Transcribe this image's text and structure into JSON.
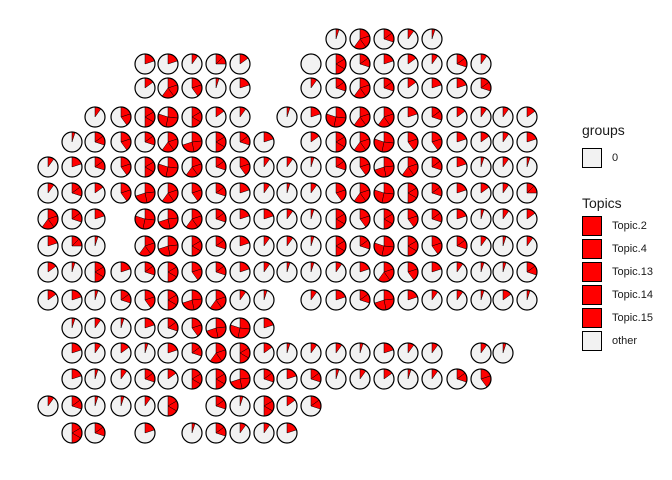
{
  "chart_data": {
    "type": "scatter-pie",
    "title": "",
    "xlabel": "",
    "ylabel": "",
    "grid": false,
    "colors": {
      "topic": "#ff0000",
      "other": "#f2f2f2",
      "outline": "#000000",
      "background": "#ffffff"
    },
    "legend": {
      "placement": "right",
      "groups": {
        "title": "groups",
        "items": [
          {
            "label": "0",
            "color": "#f2f2f2"
          }
        ]
      },
      "topics": {
        "title": "Topics",
        "items": [
          {
            "label": "Topic.2",
            "color": "#ff0000"
          },
          {
            "label": "Topic.4",
            "color": "#ff0000"
          },
          {
            "label": "Topic.13",
            "color": "#ff0000"
          },
          {
            "label": "Topic.14",
            "color": "#ff0000"
          },
          {
            "label": "Topic.15",
            "color": "#ff0000"
          },
          {
            "label": "other",
            "color": "#f2f2f2"
          }
        ]
      }
    },
    "grid_layout": {
      "row_y": [
        39,
        64,
        88,
        117,
        142,
        167,
        193,
        219,
        246,
        272,
        300,
        328,
        353,
        379,
        406,
        433
      ],
      "col_x": [
        48,
        72,
        95,
        121,
        145,
        168,
        192,
        216,
        240,
        264,
        287,
        311,
        336,
        360,
        384,
        408,
        432,
        457,
        481,
        503,
        527
      ]
    },
    "spots": [
      [
        0,
        12,
        0.05
      ],
      [
        0,
        13,
        0.6
      ],
      [
        0,
        14,
        0.3
      ],
      [
        0,
        15,
        0.1
      ],
      [
        0,
        16,
        0.05
      ],
      [
        1,
        4,
        0.2
      ],
      [
        1,
        5,
        0.2
      ],
      [
        1,
        6,
        0.1
      ],
      [
        1,
        7,
        0.25
      ],
      [
        1,
        8,
        0.15
      ],
      [
        1,
        11,
        0.0
      ],
      [
        1,
        12,
        0.5
      ],
      [
        1,
        13,
        0.3
      ],
      [
        1,
        14,
        0.2
      ],
      [
        1,
        15,
        0.15
      ],
      [
        1,
        16,
        0.1
      ],
      [
        1,
        17,
        0.3
      ],
      [
        1,
        18,
        0.1
      ],
      [
        2,
        4,
        0.15
      ],
      [
        2,
        5,
        0.6
      ],
      [
        2,
        6,
        0.4
      ],
      [
        2,
        7,
        0.05
      ],
      [
        2,
        8,
        0.2
      ],
      [
        2,
        11,
        0.1
      ],
      [
        2,
        12,
        0.3
      ],
      [
        2,
        13,
        0.6
      ],
      [
        2,
        14,
        0.3
      ],
      [
        2,
        15,
        0.15
      ],
      [
        2,
        16,
        0.2
      ],
      [
        2,
        17,
        0.2
      ],
      [
        2,
        18,
        0.3
      ],
      [
        3,
        2,
        0.1
      ],
      [
        3,
        3,
        0.4
      ],
      [
        3,
        4,
        0.5
      ],
      [
        3,
        5,
        0.8
      ],
      [
        3,
        6,
        0.5
      ],
      [
        3,
        7,
        0.15
      ],
      [
        3,
        8,
        0.1
      ],
      [
        3,
        10,
        0.05
      ],
      [
        3,
        11,
        0.2
      ],
      [
        3,
        12,
        0.8
      ],
      [
        3,
        13,
        0.6
      ],
      [
        3,
        14,
        0.6
      ],
      [
        3,
        15,
        0.2
      ],
      [
        3,
        16,
        0.3
      ],
      [
        3,
        17,
        0.15
      ],
      [
        3,
        18,
        0.1
      ],
      [
        3,
        19,
        0.1
      ],
      [
        3,
        20,
        0.15
      ],
      [
        4,
        1,
        0.05
      ],
      [
        4,
        2,
        0.3
      ],
      [
        4,
        3,
        0.4
      ],
      [
        4,
        4,
        0.3
      ],
      [
        4,
        5,
        0.6
      ],
      [
        4,
        6,
        0.7
      ],
      [
        4,
        7,
        0.5
      ],
      [
        4,
        8,
        0.3
      ],
      [
        4,
        9,
        0.2
      ],
      [
        4,
        11,
        0.15
      ],
      [
        4,
        12,
        0.5
      ],
      [
        4,
        13,
        0.6
      ],
      [
        4,
        14,
        0.8
      ],
      [
        4,
        15,
        0.4
      ],
      [
        4,
        16,
        0.4
      ],
      [
        4,
        17,
        0.2
      ],
      [
        4,
        18,
        0.15
      ],
      [
        4,
        19,
        0.1
      ],
      [
        4,
        20,
        0.2
      ],
      [
        5,
        0,
        0.1
      ],
      [
        5,
        1,
        0.2
      ],
      [
        5,
        2,
        0.3
      ],
      [
        5,
        3,
        0.4
      ],
      [
        5,
        4,
        0.5
      ],
      [
        5,
        5,
        0.8
      ],
      [
        5,
        6,
        0.6
      ],
      [
        5,
        7,
        0.3
      ],
      [
        5,
        8,
        0.4
      ],
      [
        5,
        9,
        0.1
      ],
      [
        5,
        10,
        0.1
      ],
      [
        5,
        11,
        0.05
      ],
      [
        5,
        12,
        0.3
      ],
      [
        5,
        13,
        0.4
      ],
      [
        5,
        14,
        0.7
      ],
      [
        5,
        15,
        0.6
      ],
      [
        5,
        16,
        0.3
      ],
      [
        5,
        17,
        0.2
      ],
      [
        5,
        18,
        0.05
      ],
      [
        5,
        19,
        0.1
      ],
      [
        5,
        20,
        0.05
      ],
      [
        6,
        0,
        0.1
      ],
      [
        6,
        1,
        0.3
      ],
      [
        6,
        2,
        0.15
      ],
      [
        6,
        3,
        0.4
      ],
      [
        6,
        4,
        0.7
      ],
      [
        6,
        5,
        0.6
      ],
      [
        6,
        6,
        0.4
      ],
      [
        6,
        7,
        0.3
      ],
      [
        6,
        8,
        0.2
      ],
      [
        6,
        9,
        0.1
      ],
      [
        6,
        10,
        0.05
      ],
      [
        6,
        11,
        0.1
      ],
      [
        6,
        12,
        0.4
      ],
      [
        6,
        13,
        0.6
      ],
      [
        6,
        14,
        0.8
      ],
      [
        6,
        15,
        0.5
      ],
      [
        6,
        16,
        0.3
      ],
      [
        6,
        17,
        0.2
      ],
      [
        6,
        18,
        0.15
      ],
      [
        6,
        19,
        0.1
      ],
      [
        6,
        20,
        0.25
      ],
      [
        7,
        0,
        0.6
      ],
      [
        7,
        1,
        0.3
      ],
      [
        7,
        2,
        0.2
      ],
      [
        7,
        4,
        0.8
      ],
      [
        7,
        5,
        0.7
      ],
      [
        7,
        6,
        0.6
      ],
      [
        7,
        7,
        0.3
      ],
      [
        7,
        8,
        0.2
      ],
      [
        7,
        9,
        0.2
      ],
      [
        7,
        10,
        0.1
      ],
      [
        7,
        11,
        0.05
      ],
      [
        7,
        12,
        0.5
      ],
      [
        7,
        13,
        0.4
      ],
      [
        7,
        14,
        0.5
      ],
      [
        7,
        15,
        0.4
      ],
      [
        7,
        16,
        0.3
      ],
      [
        7,
        17,
        0.2
      ],
      [
        7,
        18,
        0.05
      ],
      [
        7,
        19,
        0.1
      ],
      [
        7,
        20,
        0.15
      ],
      [
        8,
        0,
        0.2
      ],
      [
        8,
        1,
        0.25
      ],
      [
        8,
        2,
        0.05
      ],
      [
        8,
        4,
        0.6
      ],
      [
        8,
        5,
        0.7
      ],
      [
        8,
        6,
        0.5
      ],
      [
        8,
        7,
        0.3
      ],
      [
        8,
        8,
        0.2
      ],
      [
        8,
        9,
        0.1
      ],
      [
        8,
        10,
        0.1
      ],
      [
        8,
        11,
        0.05
      ],
      [
        8,
        12,
        0.5
      ],
      [
        8,
        13,
        0.3
      ],
      [
        8,
        14,
        0.8
      ],
      [
        8,
        15,
        0.5
      ],
      [
        8,
        16,
        0.4
      ],
      [
        8,
        17,
        0.3
      ],
      [
        8,
        18,
        0.1
      ],
      [
        8,
        19,
        0.05
      ],
      [
        8,
        20,
        0.1
      ],
      [
        9,
        0,
        0.15
      ],
      [
        9,
        1,
        0.05
      ],
      [
        9,
        2,
        0.5
      ],
      [
        9,
        3,
        0.2
      ],
      [
        9,
        4,
        0.3
      ],
      [
        9,
        5,
        0.5
      ],
      [
        9,
        6,
        0.4
      ],
      [
        9,
        7,
        0.3
      ],
      [
        9,
        8,
        0.2
      ],
      [
        9,
        9,
        0.1
      ],
      [
        9,
        10,
        0.05
      ],
      [
        9,
        11,
        0.05
      ],
      [
        9,
        12,
        0.1
      ],
      [
        9,
        13,
        0.2
      ],
      [
        9,
        14,
        0.6
      ],
      [
        9,
        15,
        0.4
      ],
      [
        9,
        16,
        0.2
      ],
      [
        9,
        17,
        0.1
      ],
      [
        9,
        18,
        0.05
      ],
      [
        9,
        19,
        0.05
      ],
      [
        9,
        20,
        0.3
      ],
      [
        10,
        0,
        0.15
      ],
      [
        10,
        1,
        0.2
      ],
      [
        10,
        2,
        0.05
      ],
      [
        10,
        3,
        0.3
      ],
      [
        10,
        4,
        0.4
      ],
      [
        10,
        5,
        0.5
      ],
      [
        10,
        6,
        0.7
      ],
      [
        10,
        7,
        0.6
      ],
      [
        10,
        8,
        0.1
      ],
      [
        10,
        9,
        0.05
      ],
      [
        10,
        11,
        0.1
      ],
      [
        10,
        12,
        0.2
      ],
      [
        10,
        13,
        0.3
      ],
      [
        10,
        14,
        0.7
      ],
      [
        10,
        15,
        0.2
      ],
      [
        10,
        16,
        0.1
      ],
      [
        10,
        17,
        0.1
      ],
      [
        10,
        18,
        0.05
      ],
      [
        10,
        19,
        0.15
      ],
      [
        10,
        20,
        0.05
      ],
      [
        11,
        1,
        0.05
      ],
      [
        11,
        2,
        0.1
      ],
      [
        11,
        3,
        0.05
      ],
      [
        11,
        4,
        0.2
      ],
      [
        11,
        5,
        0.3
      ],
      [
        11,
        6,
        0.4
      ],
      [
        11,
        7,
        0.7
      ],
      [
        11,
        8,
        0.8
      ],
      [
        11,
        9,
        0.2
      ],
      [
        12,
        1,
        0.2
      ],
      [
        12,
        2,
        0.1
      ],
      [
        12,
        3,
        0.15
      ],
      [
        12,
        4,
        0.05
      ],
      [
        12,
        5,
        0.2
      ],
      [
        12,
        6,
        0.3
      ],
      [
        12,
        7,
        0.6
      ],
      [
        12,
        8,
        0.5
      ],
      [
        12,
        9,
        0.15
      ],
      [
        12,
        10,
        0.05
      ],
      [
        12,
        11,
        0.1
      ],
      [
        12,
        12,
        0.1
      ],
      [
        12,
        13,
        0.05
      ],
      [
        12,
        14,
        0.2
      ],
      [
        12,
        15,
        0.1
      ],
      [
        12,
        16,
        0.1
      ],
      [
        12,
        18,
        0.1
      ],
      [
        12,
        19,
        0.05
      ],
      [
        13,
        1,
        0.2
      ],
      [
        13,
        2,
        0.05
      ],
      [
        13,
        3,
        0.1
      ],
      [
        13,
        4,
        0.3
      ],
      [
        13,
        5,
        0.15
      ],
      [
        13,
        6,
        0.5
      ],
      [
        13,
        7,
        0.5
      ],
      [
        13,
        8,
        0.7
      ],
      [
        13,
        9,
        0.3
      ],
      [
        13,
        10,
        0.2
      ],
      [
        13,
        11,
        0.3
      ],
      [
        13,
        12,
        0.05
      ],
      [
        13,
        13,
        0.1
      ],
      [
        13,
        14,
        0.15
      ],
      [
        13,
        15,
        0.05
      ],
      [
        13,
        16,
        0.1
      ],
      [
        13,
        17,
        0.3
      ],
      [
        13,
        18,
        0.4
      ],
      [
        14,
        0,
        0.1
      ],
      [
        14,
        1,
        0.3
      ],
      [
        14,
        2,
        0.05
      ],
      [
        14,
        3,
        0.05
      ],
      [
        14,
        4,
        0.1
      ],
      [
        14,
        5,
        0.5
      ],
      [
        14,
        7,
        0.3
      ],
      [
        14,
        8,
        0.05
      ],
      [
        14,
        9,
        0.5
      ],
      [
        14,
        10,
        0.15
      ],
      [
        14,
        11,
        0.3
      ],
      [
        15,
        1,
        0.5
      ],
      [
        15,
        2,
        0.3
      ],
      [
        15,
        4,
        0.2
      ],
      [
        15,
        6,
        0.05
      ],
      [
        15,
        7,
        0.3
      ],
      [
        15,
        8,
        0.1
      ],
      [
        15,
        9,
        0.1
      ],
      [
        15,
        10,
        0.2
      ]
    ]
  }
}
